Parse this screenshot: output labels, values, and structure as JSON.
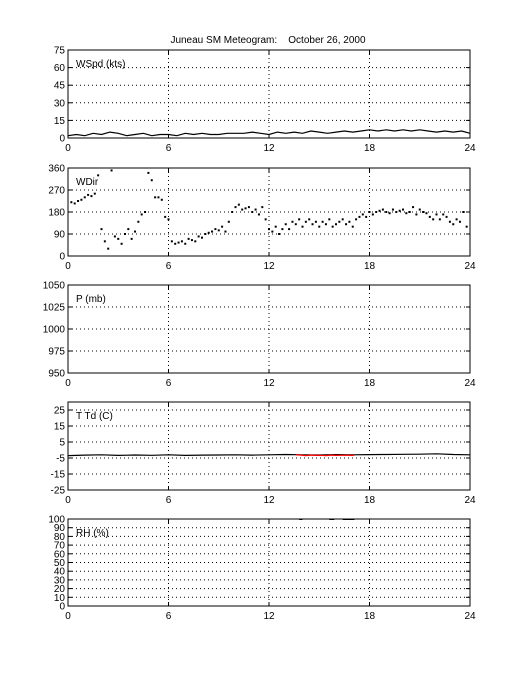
{
  "figure": {
    "title": "Juneau SM Meteogram:    October 26, 2000"
  },
  "chart_data": [
    {
      "id": "wspd",
      "type": "line",
      "label": "WSpd (kts)",
      "xlim": [
        0,
        24
      ],
      "ylim": [
        0,
        75
      ],
      "xticks": [
        0,
        6,
        12,
        18,
        24
      ],
      "yticks": [
        0,
        15,
        30,
        45,
        60,
        75
      ],
      "grid": true,
      "series": [
        {
          "color": "#000000",
          "x": [
            0,
            0.5,
            1,
            1.5,
            2,
            2.5,
            3,
            3.5,
            4,
            4.5,
            5,
            5.5,
            6,
            6.5,
            7,
            7.5,
            8,
            8.5,
            9,
            9.5,
            10,
            10.5,
            11,
            11.5,
            12,
            12.5,
            13,
            13.5,
            14,
            14.5,
            15,
            15.5,
            16,
            16.5,
            17,
            17.5,
            18,
            18.5,
            19,
            19.5,
            20,
            20.5,
            21,
            21.5,
            22,
            22.5,
            23,
            23.5,
            24
          ],
          "y": [
            2,
            3,
            2,
            4,
            3,
            5,
            4,
            2,
            3,
            4,
            2,
            3,
            3,
            2,
            4,
            3,
            4,
            3,
            3,
            4,
            4,
            4,
            5,
            4,
            3,
            5,
            4,
            5,
            4,
            6,
            5,
            4,
            5,
            6,
            5,
            6,
            7,
            6,
            7,
            6,
            7,
            6,
            7,
            6,
            5,
            6,
            5,
            6,
            4
          ]
        }
      ]
    },
    {
      "id": "wdir",
      "type": "scatter",
      "label": "WDir",
      "xlim": [
        0,
        24
      ],
      "ylim": [
        0,
        360
      ],
      "xticks": [
        0,
        6,
        12,
        18,
        24
      ],
      "yticks": [
        0,
        90,
        180,
        270,
        360
      ],
      "grid": true,
      "series": [
        {
          "color": "#000000",
          "x": [
            0.2,
            0.4,
            0.6,
            0.8,
            1.0,
            1.2,
            1.4,
            1.6,
            1.8,
            2.0,
            2.2,
            2.4,
            2.6,
            2.8,
            3.0,
            3.2,
            3.4,
            3.6,
            3.8,
            4.0,
            4.2,
            4.4,
            4.6,
            4.8,
            5.0,
            5.2,
            5.4,
            5.6,
            5.8,
            6.0,
            6.2,
            6.4,
            6.6,
            6.8,
            7.0,
            7.2,
            7.4,
            7.6,
            7.8,
            8.0,
            8.2,
            8.4,
            8.6,
            8.8,
            9.0,
            9.2,
            9.4,
            9.6,
            9.8,
            10.0,
            10.2,
            10.4,
            10.6,
            10.8,
            11.0,
            11.2,
            11.4,
            11.6,
            11.8,
            12.0,
            12.2,
            12.4,
            12.6,
            12.8,
            13.0,
            13.2,
            13.4,
            13.6,
            13.8,
            14.0,
            14.2,
            14.4,
            14.6,
            14.8,
            15.0,
            15.2,
            15.4,
            15.6,
            15.8,
            16.0,
            16.2,
            16.4,
            16.6,
            16.8,
            17.0,
            17.2,
            17.4,
            17.6,
            17.8,
            18.0,
            18.2,
            18.4,
            18.6,
            18.8,
            19.0,
            19.2,
            19.4,
            19.6,
            19.8,
            20.0,
            20.2,
            20.4,
            20.6,
            20.8,
            21.0,
            21.2,
            21.4,
            21.6,
            21.8,
            22.0,
            22.2,
            22.4,
            22.6,
            22.8,
            23.0,
            23.2,
            23.4,
            23.6,
            23.8
          ],
          "y": [
            220,
            215,
            225,
            230,
            240,
            250,
            245,
            255,
            330,
            110,
            60,
            30,
            350,
            80,
            70,
            50,
            90,
            110,
            70,
            100,
            140,
            170,
            180,
            340,
            310,
            240,
            240,
            230,
            160,
            150,
            60,
            50,
            55,
            60,
            50,
            70,
            65,
            60,
            80,
            75,
            90,
            95,
            100,
            110,
            105,
            120,
            100,
            140,
            180,
            200,
            210,
            190,
            195,
            200,
            180,
            190,
            170,
            200,
            150,
            110,
            100,
            120,
            90,
            110,
            130,
            110,
            140,
            130,
            150,
            120,
            140,
            150,
            130,
            140,
            120,
            140,
            130,
            150,
            120,
            130,
            140,
            150,
            130,
            140,
            120,
            150,
            160,
            170,
            160,
            180,
            170,
            180,
            185,
            190,
            180,
            175,
            190,
            180,
            185,
            190,
            175,
            180,
            200,
            170,
            190,
            180,
            175,
            160,
            150,
            170,
            150,
            170,
            160,
            140,
            130,
            150,
            140,
            180,
            120
          ]
        }
      ]
    },
    {
      "id": "pres",
      "type": "line",
      "label": "P (mb)",
      "xlim": [
        0,
        24
      ],
      "ylim": [
        950,
        1050
      ],
      "xticks": [
        0,
        6,
        12,
        18,
        24
      ],
      "yticks": [
        950,
        975,
        1000,
        1025,
        1050
      ],
      "grid": true,
      "series": []
    },
    {
      "id": "temp",
      "type": "line",
      "label": "T Td (C)",
      "xlim": [
        0,
        24
      ],
      "ylim": [
        -25,
        30
      ],
      "xticks": [
        0,
        6,
        12,
        18,
        24
      ],
      "yticks": [
        -25,
        -15,
        -5,
        5,
        15,
        25
      ],
      "grid": true,
      "series": [
        {
          "color": "#000000",
          "x": [
            0,
            1,
            2,
            3,
            4,
            5,
            6,
            7,
            8,
            9,
            10,
            11,
            12,
            13,
            14,
            15,
            16,
            17,
            18,
            19,
            20,
            21,
            22,
            23,
            24
          ],
          "y": [
            -3.5,
            -3.2,
            -3.0,
            -3.4,
            -3.1,
            -3.3,
            -3.0,
            -3.4,
            -3.2,
            -3.1,
            -3.0,
            -3.2,
            -3.0,
            -2.8,
            -3.0,
            -3.1,
            -2.9,
            -3.0,
            -2.9,
            -2.8,
            -2.7,
            -2.6,
            -2.4,
            -2.8,
            -3.0
          ]
        },
        {
          "color": "#ff0000",
          "x": [
            13.6,
            13.9,
            14.2,
            14.5,
            14.8,
            15.1,
            15.4,
            15.7,
            16.0,
            16.3,
            16.6,
            16.9,
            17.1
          ],
          "y": [
            -3.0,
            -3.2,
            -3.5,
            -3.2,
            -3.4,
            -3.3,
            -3.5,
            -3.2,
            -3.4,
            -3.3,
            -3.2,
            -3.4,
            -3.3
          ]
        }
      ]
    },
    {
      "id": "rh",
      "type": "line",
      "label": "RH (%)",
      "xlim": [
        0,
        24
      ],
      "ylim": [
        0,
        100
      ],
      "xticks": [
        0,
        6,
        12,
        18,
        24
      ],
      "yticks": [
        0,
        10,
        20,
        30,
        40,
        50,
        60,
        70,
        80,
        90,
        100
      ],
      "grid": true,
      "series": [
        {
          "color": "#000000",
          "x": [
            13.8,
            14.0
          ],
          "y": [
            99.5,
            99.5
          ]
        },
        {
          "color": "#000000",
          "x": [
            15.6,
            15.9
          ],
          "y": [
            99.5,
            99.5
          ]
        },
        {
          "color": "#000000",
          "x": [
            16.4,
            17.1
          ],
          "y": [
            99.5,
            99.5
          ]
        }
      ]
    }
  ]
}
